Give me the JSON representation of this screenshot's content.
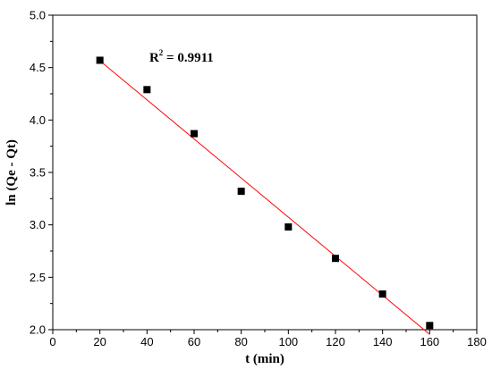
{
  "chart_data": {
    "type": "scatter",
    "xlabel": "t (min)",
    "ylabel": "ln (Qe - Qt)",
    "xlim": [
      0,
      180
    ],
    "ylim": [
      2.0,
      5.0
    ],
    "x_ticks": [
      0,
      20,
      40,
      60,
      80,
      100,
      120,
      140,
      160,
      180
    ],
    "y_ticks": [
      "2.0",
      "2.5",
      "3.0",
      "3.5",
      "4.0",
      "4.5",
      "5.0"
    ],
    "grid": false,
    "series": [
      {
        "x": [
          20,
          40,
          60,
          80,
          100,
          120,
          140,
          160
        ],
        "y": [
          4.57,
          4.29,
          3.87,
          3.32,
          2.98,
          2.68,
          2.34,
          2.04
        ],
        "marker": "square",
        "color": "#000000"
      }
    ],
    "fit_line": {
      "x": [
        20,
        160
      ],
      "y": [
        4.565,
        1.955
      ],
      "color": "#ff0000"
    },
    "annotation": {
      "text_main": "R",
      "text_sup": "2",
      "text_value": " = 0.9911",
      "x": 41,
      "y": 4.6
    }
  }
}
